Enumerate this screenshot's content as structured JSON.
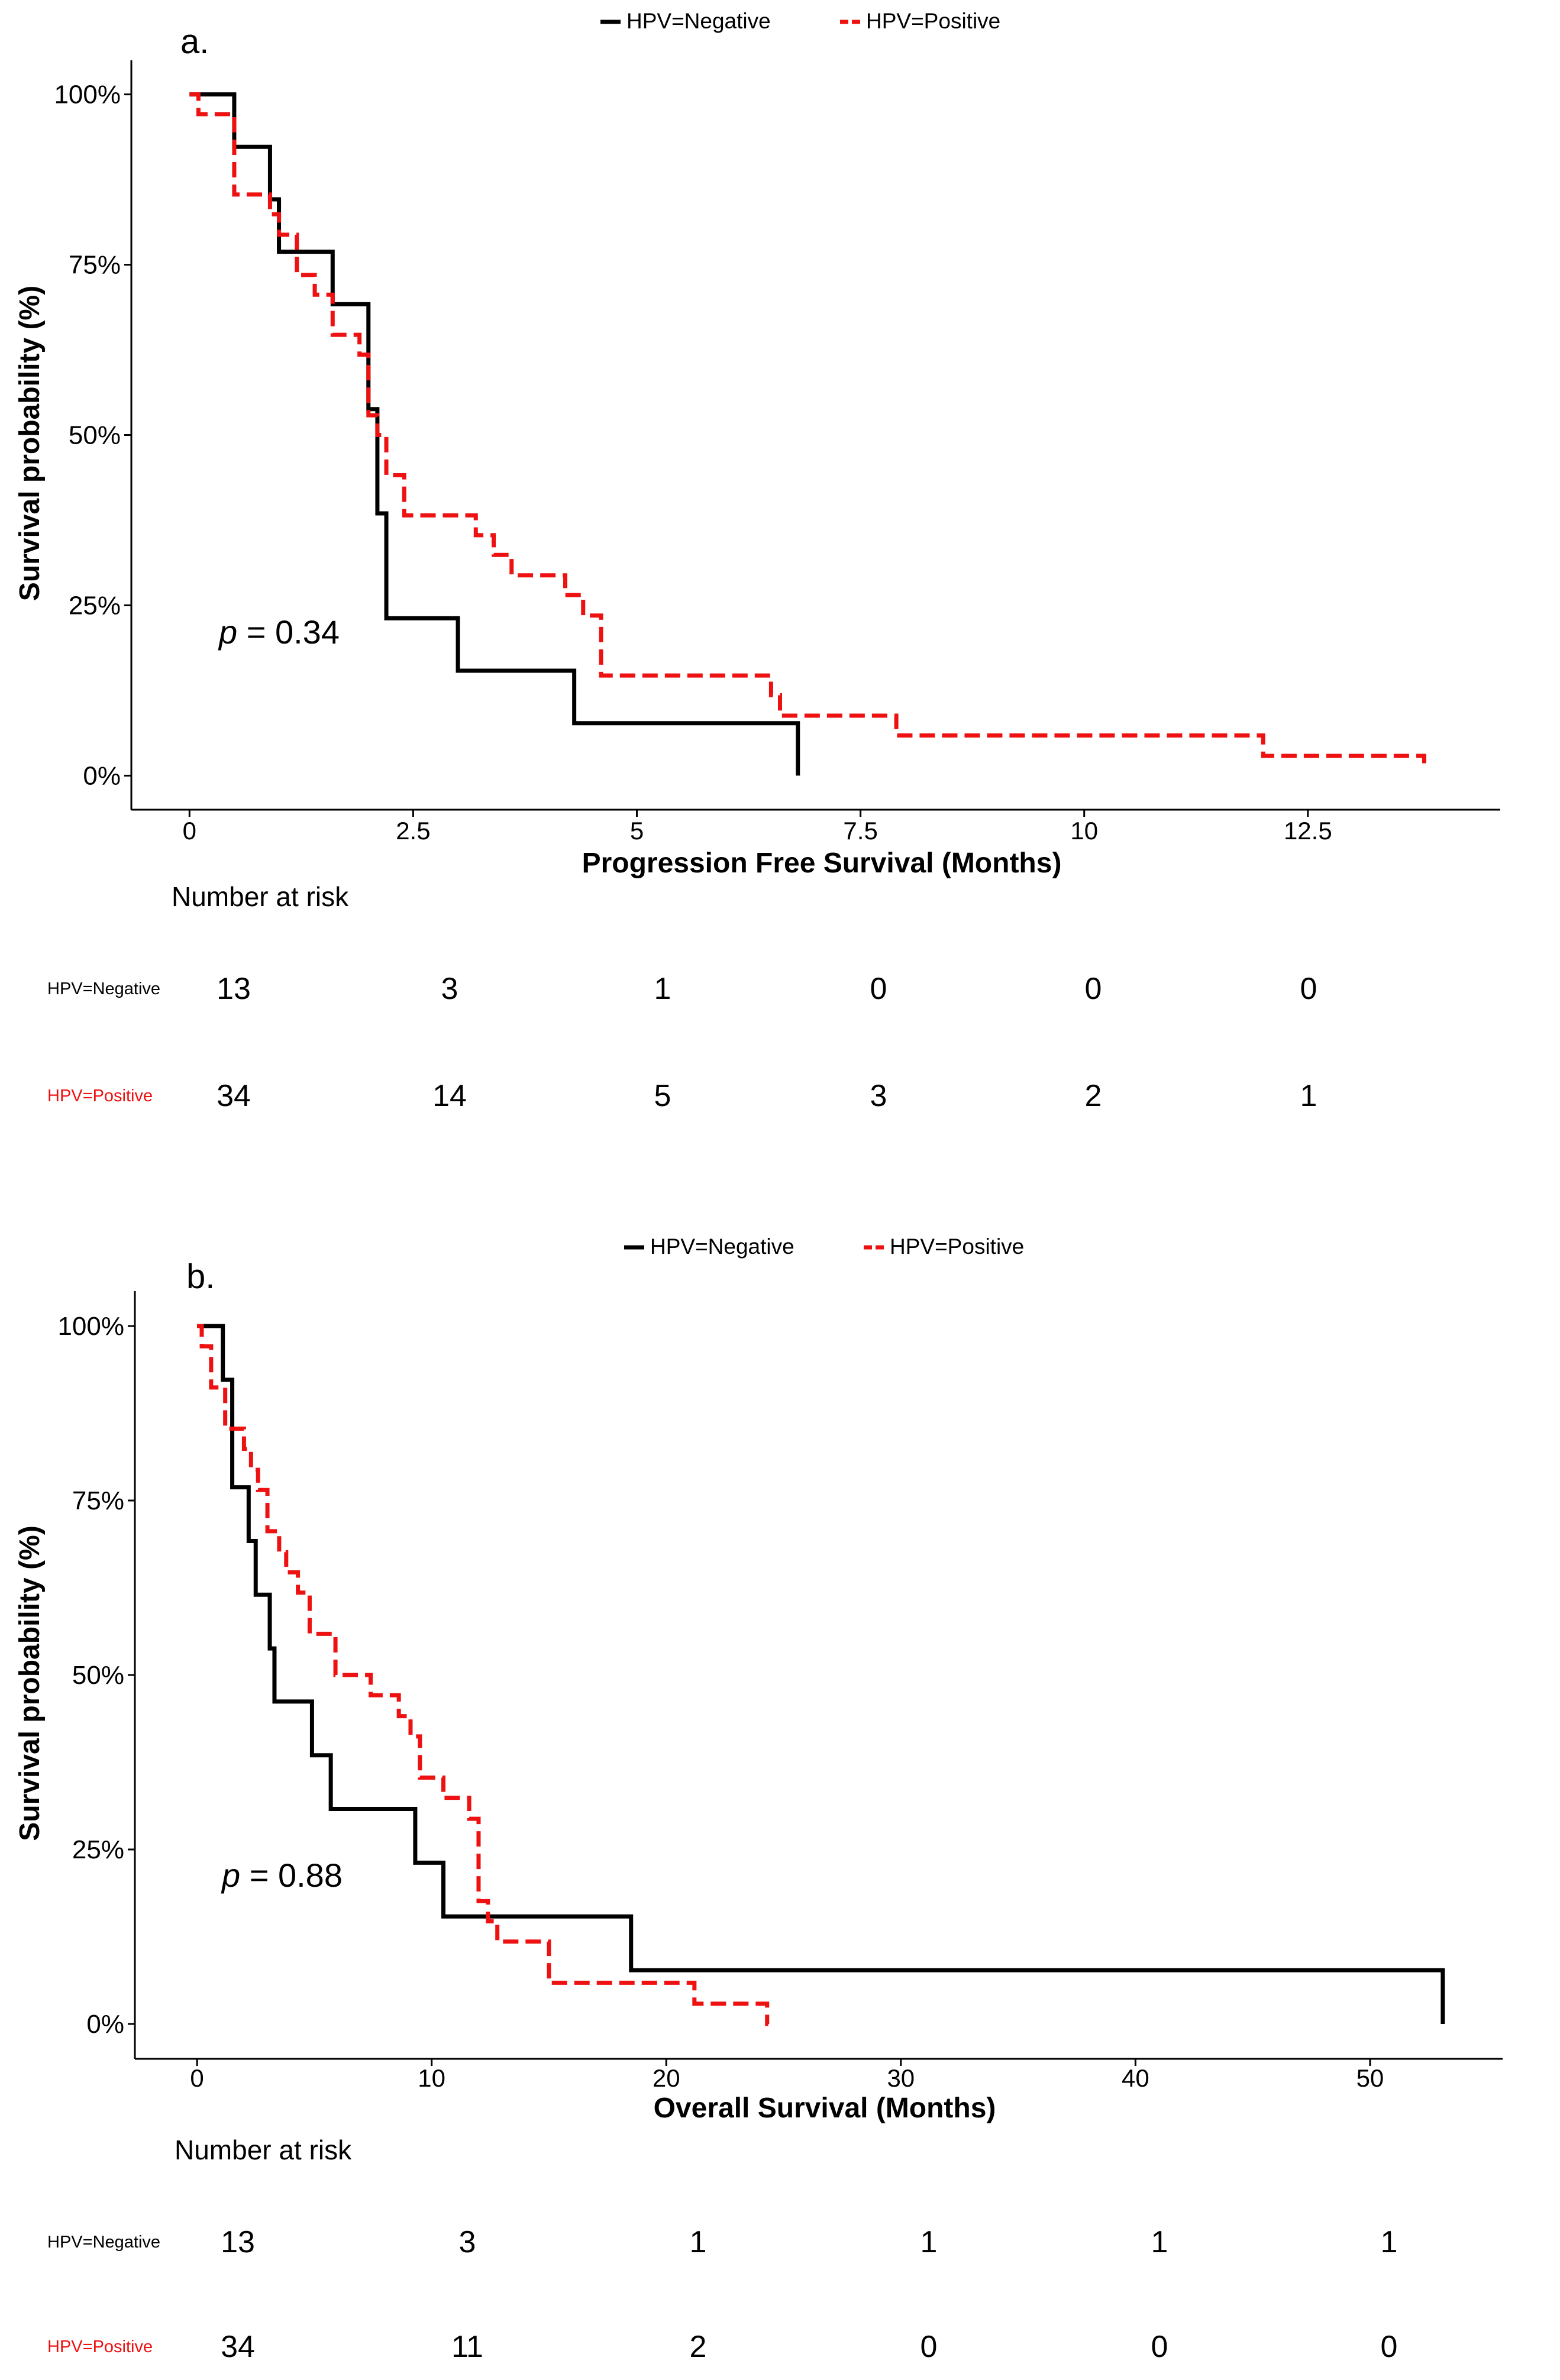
{
  "chart_data": [
    {
      "type": "line",
      "panel_label": "a.",
      "xlabel": "Progression Free Survival (Months)",
      "ylabel": "Survival probability (%)",
      "xlim": [
        -0.65,
        14.65
      ],
      "ylim": [
        -0.05,
        1.05
      ],
      "x_ticks": [
        0,
        2.5,
        5,
        7.5,
        10,
        12.5
      ],
      "x_tick_labels": [
        "0",
        "2.5",
        "5",
        "7.5",
        "10",
        "12.5"
      ],
      "y_ticks": [
        0,
        0.25,
        0.5,
        0.75,
        1
      ],
      "y_tick_labels": [
        "0%",
        "25%",
        "50%",
        "75%",
        "100%"
      ],
      "grid": false,
      "legend_position": "top",
      "legend": [
        "HPV=Negative",
        "HPV=Positive"
      ],
      "p_value": {
        "prefix": "p",
        "text": " = 0.34"
      },
      "series": [
        {
          "name": "HPV=Negative",
          "color": "#000000",
          "style": "solid",
          "steps": [
            [
              0,
              1
            ],
            [
              0.5,
              0.923
            ],
            [
              0.9,
              0.846
            ],
            [
              1.0,
              0.769
            ],
            [
              1.6,
              0.692
            ],
            [
              2.0,
              0.538
            ],
            [
              2.1,
              0.385
            ],
            [
              2.2,
              0.231
            ],
            [
              3.0,
              0.154
            ],
            [
              4.3,
              0.077
            ],
            [
              6.8,
              0
            ]
          ]
        },
        {
          "name": "HPV=Positive",
          "color": "#ee1111",
          "style": "dashed",
          "steps": [
            [
              0,
              1
            ],
            [
              0.1,
              0.971
            ],
            [
              0.5,
              0.853
            ],
            [
              0.9,
              0.824
            ],
            [
              1.0,
              0.794
            ],
            [
              1.2,
              0.735
            ],
            [
              1.4,
              0.706
            ],
            [
              1.6,
              0.647
            ],
            [
              1.9,
              0.618
            ],
            [
              2.0,
              0.529
            ],
            [
              2.1,
              0.5
            ],
            [
              2.2,
              0.441
            ],
            [
              2.4,
              0.382
            ],
            [
              3.2,
              0.353
            ],
            [
              3.4,
              0.324
            ],
            [
              3.6,
              0.294
            ],
            [
              4.2,
              0.265
            ],
            [
              4.4,
              0.235
            ],
            [
              4.6,
              0.147
            ],
            [
              6.5,
              0.118
            ],
            [
              6.6,
              0.088
            ],
            [
              7.9,
              0.059
            ],
            [
              12.0,
              0.029
            ],
            [
              13.8,
              0.015
            ]
          ]
        }
      ],
      "risk_table": {
        "title": "Number at risk",
        "rows": [
          {
            "label": "HPV=Negative",
            "color": "#000000",
            "values": [
              "13",
              "3",
              "1",
              "0",
              "0",
              "0"
            ]
          },
          {
            "label": "HPV=Positive",
            "color": "#ee1111",
            "values": [
              "34",
              "14",
              "5",
              "3",
              "2",
              "1"
            ]
          }
        ]
      }
    },
    {
      "type": "line",
      "panel_label": "b.",
      "xlabel": "Overall Survival (Months)",
      "ylabel": "Survival probability (%)",
      "xlim": [
        -2.65,
        55.65
      ],
      "ylim": [
        -0.05,
        1.05
      ],
      "x_ticks": [
        0,
        10,
        20,
        30,
        40,
        50
      ],
      "x_tick_labels": [
        "0",
        "10",
        "20",
        "30",
        "40",
        "50"
      ],
      "y_ticks": [
        0,
        0.25,
        0.5,
        0.75,
        1
      ],
      "y_tick_labels": [
        "0%",
        "25%",
        "50%",
        "75%",
        "100%"
      ],
      "grid": false,
      "legend_position": "top",
      "legend": [
        "HPV=Negative",
        "HPV=Positive"
      ],
      "p_value": {
        "prefix": "p",
        "text": " = 0.88"
      },
      "series": [
        {
          "name": "HPV=Negative",
          "color": "#000000",
          "style": "solid",
          "steps": [
            [
              0,
              1
            ],
            [
              1.1,
              0.923
            ],
            [
              1.5,
              0.769
            ],
            [
              2.2,
              0.692
            ],
            [
              2.5,
              0.615
            ],
            [
              3.1,
              0.538
            ],
            [
              3.3,
              0.462
            ],
            [
              4.9,
              0.385
            ],
            [
              5.7,
              0.308
            ],
            [
              9.3,
              0.231
            ],
            [
              10.5,
              0.154
            ],
            [
              18.5,
              0.077
            ],
            [
              53.1,
              0
            ]
          ]
        },
        {
          "name": "HPV=Positive",
          "color": "#ee1111",
          "style": "dashed",
          "steps": [
            [
              0,
              1
            ],
            [
              0.2,
              0.971
            ],
            [
              0.6,
              0.912
            ],
            [
              1.2,
              0.853
            ],
            [
              2.0,
              0.824
            ],
            [
              2.3,
              0.794
            ],
            [
              2.6,
              0.765
            ],
            [
              3.0,
              0.706
            ],
            [
              3.5,
              0.676
            ],
            [
              3.8,
              0.647
            ],
            [
              4.3,
              0.618
            ],
            [
              4.8,
              0.559
            ],
            [
              5.9,
              0.5
            ],
            [
              7.4,
              0.471
            ],
            [
              8.6,
              0.441
            ],
            [
              9.1,
              0.412
            ],
            [
              9.5,
              0.353
            ],
            [
              10.5,
              0.324
            ],
            [
              11.6,
              0.294
            ],
            [
              12.0,
              0.176
            ],
            [
              12.4,
              0.147
            ],
            [
              12.8,
              0.118
            ],
            [
              15.0,
              0.059
            ],
            [
              21.2,
              0.029
            ],
            [
              24.3,
              0.0
            ]
          ]
        }
      ],
      "risk_table": {
        "title": "Number at risk",
        "rows": [
          {
            "label": "HPV=Negative",
            "color": "#000000",
            "values": [
              "13",
              "3",
              "1",
              "1",
              "1",
              "1"
            ]
          },
          {
            "label": "HPV=Positive",
            "color": "#ee1111",
            "values": [
              "34",
              "11",
              "2",
              "0",
              "0",
              "0"
            ]
          }
        ]
      }
    }
  ]
}
